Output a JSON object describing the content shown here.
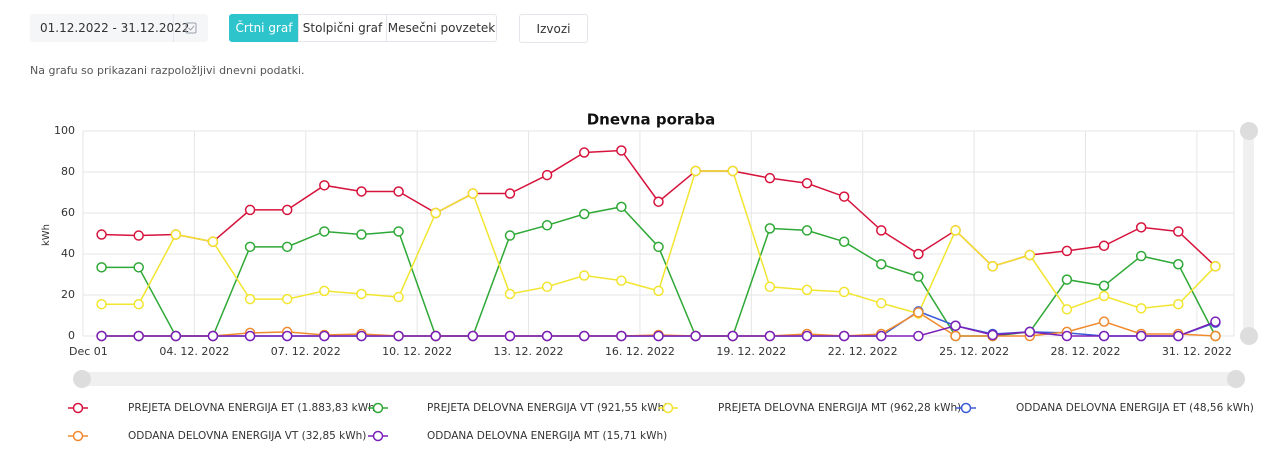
{
  "date_range": "01.12.2022 - 31.12.2022",
  "tabs": [
    "Črtni graf",
    "Stolpični graf",
    "Mesečni povzetek"
  ],
  "active_tab": 0,
  "export_button": "Izvozi",
  "note": "Na grafu so prikazani razpoložljivi dnevni podatki.",
  "chart_data": {
    "type": "line",
    "title": "Dnevna poraba",
    "y_label": "kWh",
    "categories": [
      "Dec 01",
      null,
      null,
      "04. 12. 2022",
      null,
      null,
      "07. 12. 2022",
      null,
      null,
      "10. 12. 2022",
      null,
      null,
      "13. 12. 2022",
      null,
      null,
      "16. 12. 2022",
      null,
      null,
      "19. 12. 2022",
      null,
      null,
      "22. 12. 2022",
      null,
      null,
      "25. 12. 2022",
      null,
      null,
      "28. 12. 2022",
      null,
      null,
      "31. 12. 2022"
    ],
    "ylim": [
      0,
      100
    ],
    "yticks": [
      0,
      20,
      40,
      60,
      80,
      100
    ],
    "grid": true,
    "series": [
      {
        "name": "PREJETA DELOVNA ENERGIJA ET (1.883,83 kWh)",
        "color": "#d6133c",
        "values": [
          49.5,
          49,
          49.5,
          46,
          61.5,
          61.5,
          73.5,
          70.5,
          70.5,
          60,
          69.5,
          69.5,
          78.5,
          89.5,
          90.5,
          65.5,
          80.5,
          80.5,
          77,
          74.5,
          68,
          51.5,
          40,
          51.5,
          34,
          39.5,
          41.5,
          44,
          53,
          51,
          34
        ]
      },
      {
        "name": "PREJETA DELOVNA ENERGIJA VT (921,55 kWh)",
        "color": "#2ea836",
        "values": [
          33.5,
          33.5,
          0,
          0,
          43.5,
          43.5,
          51,
          49.5,
          51,
          0,
          0,
          49,
          54,
          59.5,
          63,
          43.5,
          0,
          0,
          52.5,
          51.5,
          46,
          35,
          29,
          0,
          0,
          2,
          27.5,
          24.5,
          39,
          35,
          0
        ]
      },
      {
        "name": "PREJETA DELOVNA ENERGIJA MT (962,28 kWh)",
        "color": "#f2e530",
        "values": [
          15.5,
          15.5,
          49.5,
          46,
          18,
          18,
          22,
          20.5,
          19,
          60,
          69.5,
          20.5,
          24,
          29.5,
          27,
          22,
          80.5,
          80.5,
          24,
          22.5,
          21.5,
          16,
          11,
          51.5,
          34,
          39.5,
          13,
          19.5,
          13.5,
          15.5,
          34
        ]
      },
      {
        "name": "ODDANA DELOVNA ENERGIJA ET (48,56 kWh)",
        "color": "#3b5bd6",
        "values": [
          0,
          0,
          0,
          0,
          0,
          0,
          0,
          0,
          0,
          0,
          0,
          0,
          0,
          0,
          0,
          0,
          0,
          0,
          0,
          0,
          0,
          0,
          12,
          5,
          1,
          2,
          1.5,
          0,
          0,
          0,
          6.5
        ]
      },
      {
        "name": "ODDANA DELOVNA ENERGIJA VT (32,85 kWh)",
        "color": "#f08a2e",
        "values": [
          0,
          0,
          0,
          0,
          1.5,
          2,
          0.5,
          1,
          0,
          0,
          0,
          0,
          0,
          0,
          0,
          0.5,
          0,
          0,
          0,
          1,
          0,
          1,
          11.5,
          0,
          0,
          0,
          2,
          7,
          1,
          1,
          0
        ]
      },
      {
        "name": "ODDANA DELOVNA ENERGIJA MT (15,71 kWh)",
        "color": "#7a1fb8",
        "values": [
          0,
          0,
          0,
          0,
          0,
          0,
          0,
          0,
          0,
          0,
          0,
          0,
          0,
          0,
          0,
          0,
          0,
          0,
          0,
          0,
          0,
          0,
          0,
          5,
          0.5,
          2,
          0,
          0,
          0,
          0,
          7
        ]
      }
    ]
  }
}
